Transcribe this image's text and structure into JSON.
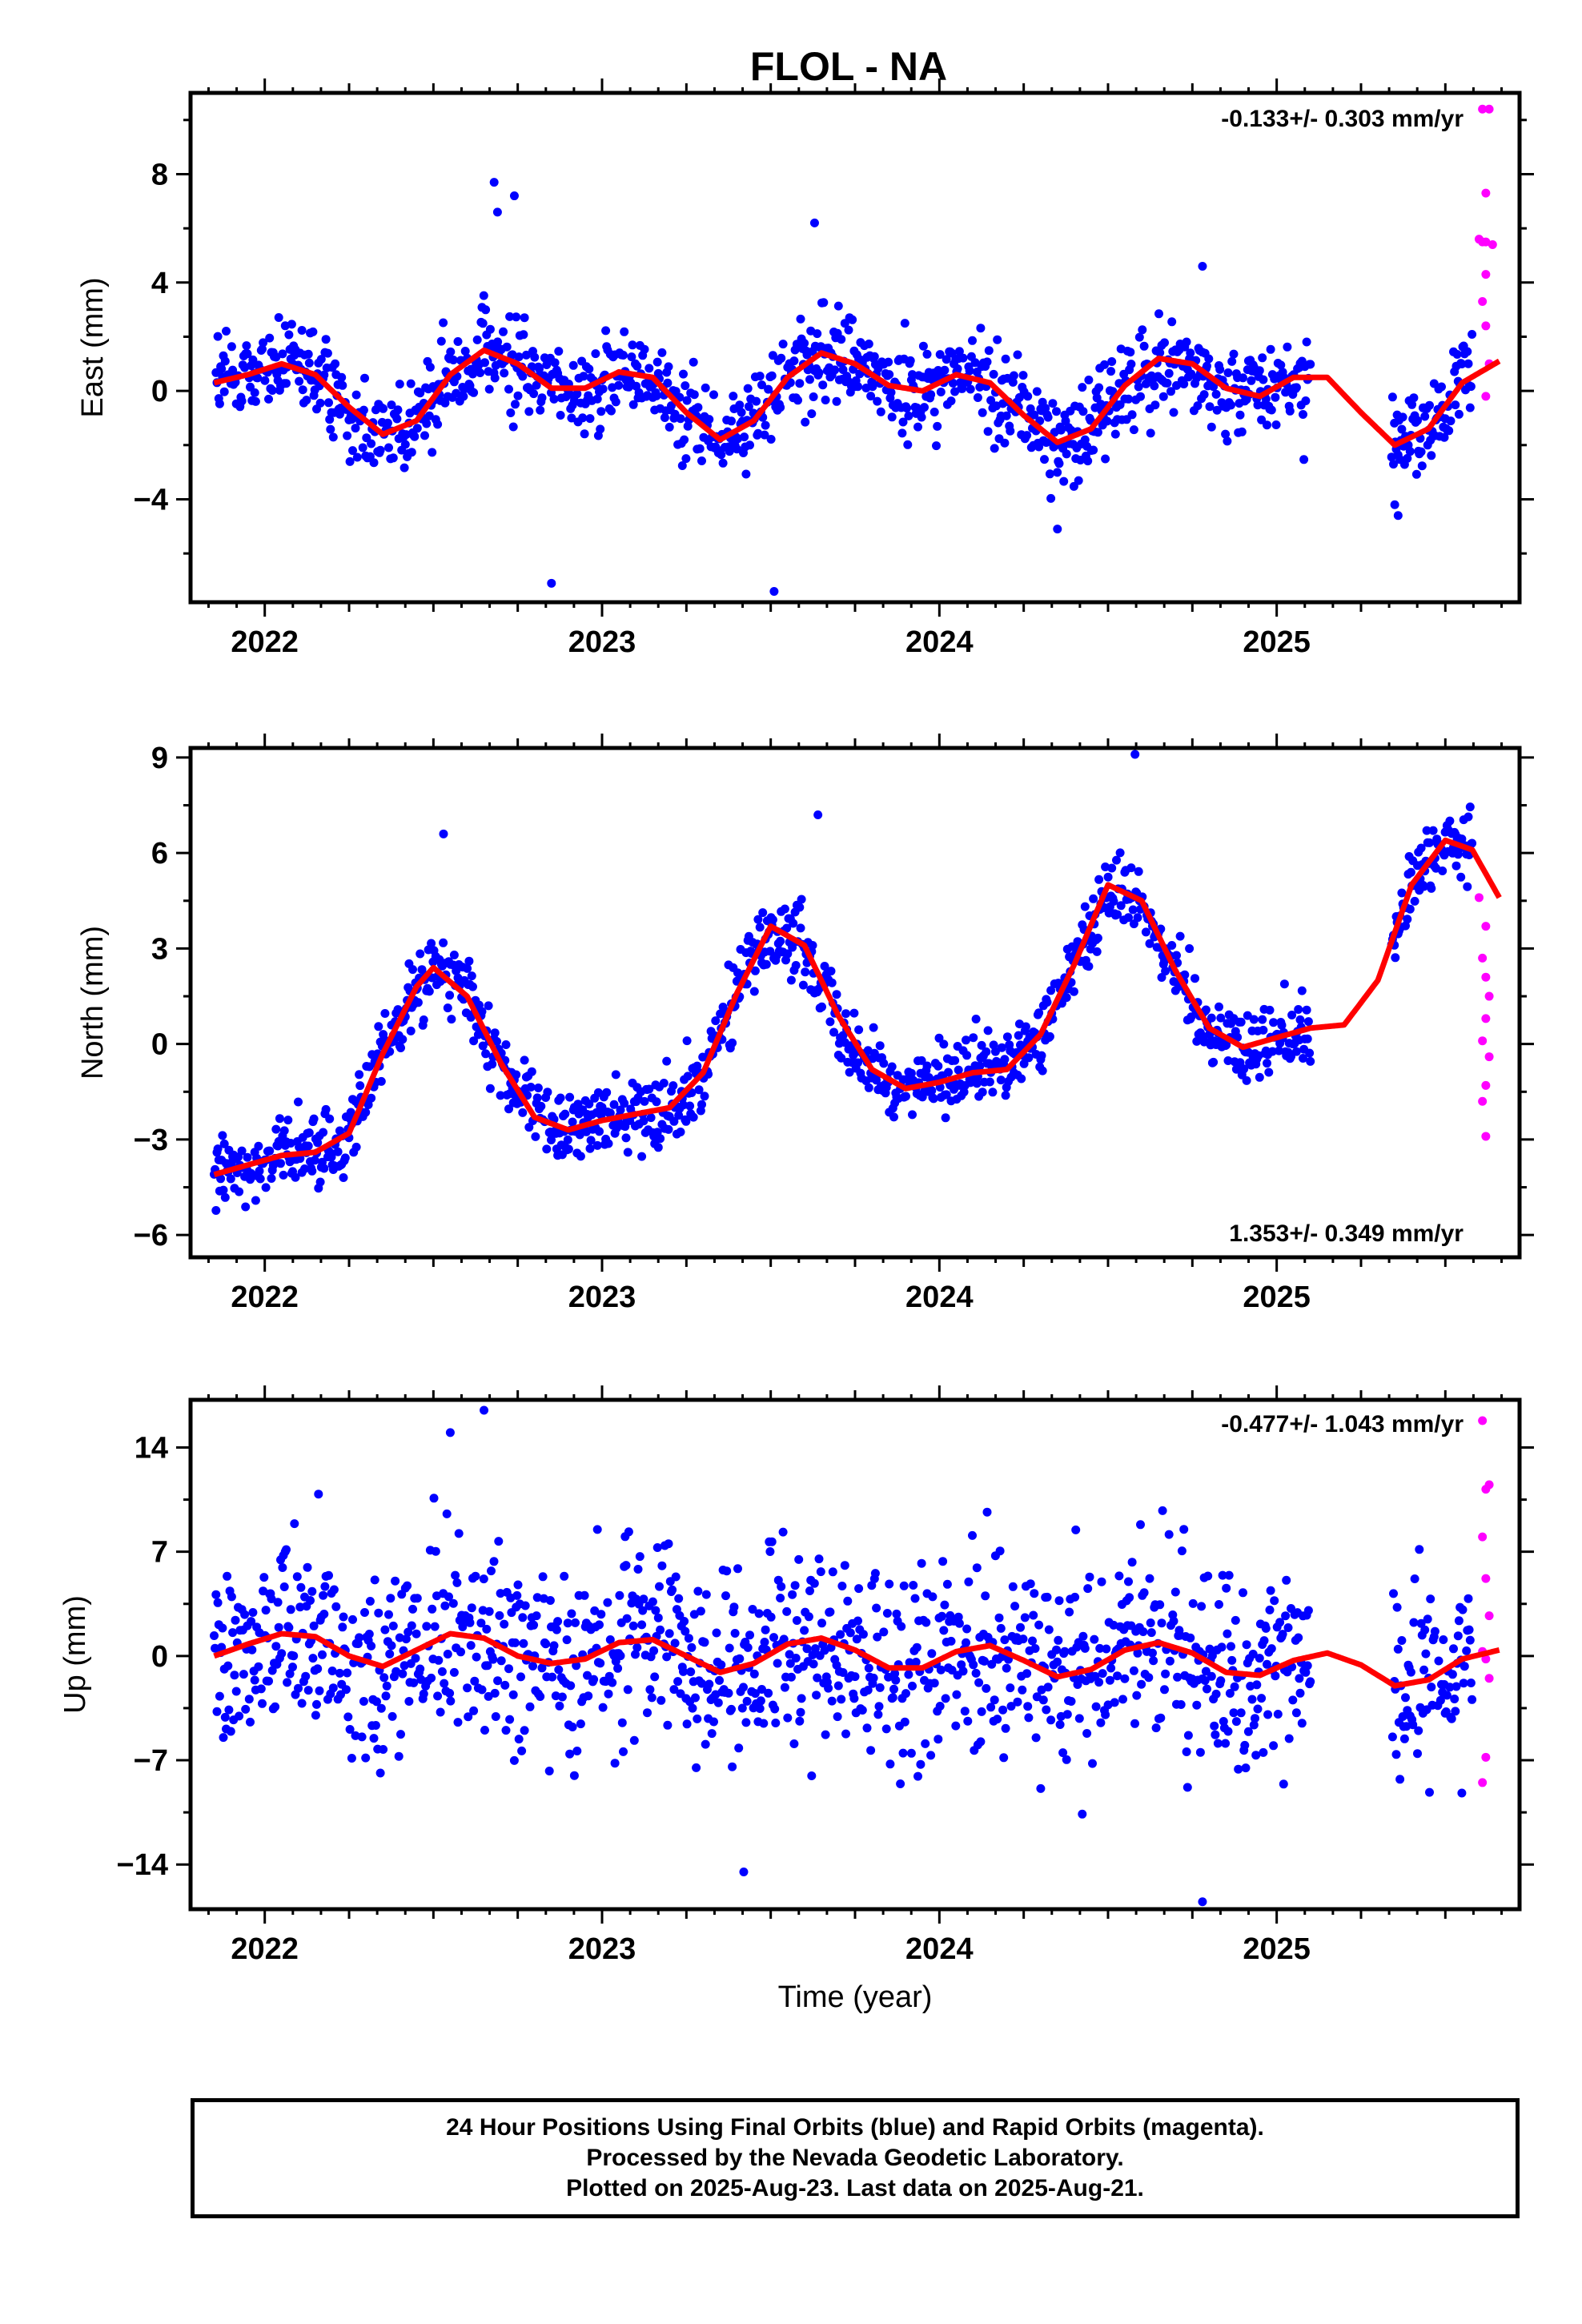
{
  "title": "FLOL - NA",
  "colors": {
    "final": "#0000ff",
    "rapid": "#ff00ff",
    "model": "#ff0000",
    "frame": "#000000"
  },
  "xlabel": "Time (year)",
  "footer": {
    "line1": "24 Hour Positions Using Final Orbits (blue) and Rapid Orbits (magenta).",
    "line2": "Processed by the Nevada Geodetic Laboratory.",
    "line3": "Plotted on 2025-Aug-23. Last data on 2025-Aug-21."
  },
  "chart_data": [
    {
      "type": "scatter",
      "ylabel": "East (mm)",
      "rate_label": "-0.133+/- 0.303 mm/yr",
      "xlim": [
        2021.78,
        2025.72
      ],
      "ylim": [
        -7.8,
        11.0
      ],
      "xticks": [
        2022,
        2023,
        2024,
        2025
      ],
      "xtick_labels": [
        "2022",
        "2023",
        "2024",
        "2025"
      ],
      "yticks": [
        -4,
        0,
        4,
        8
      ],
      "ytick_labels": [
        "−4",
        "0",
        "4",
        "8"
      ],
      "final_range": [
        2021.85,
        2025.58
      ],
      "gap": [
        2025.1,
        2025.34
      ],
      "final_noise_sd": 1.2,
      "model_x": [
        2021.85,
        2021.95,
        2022.05,
        2022.15,
        2022.25,
        2022.35,
        2022.45,
        2022.55,
        2022.65,
        2022.75,
        2022.85,
        2022.95,
        2023.05,
        2023.15,
        2023.25,
        2023.35,
        2023.45,
        2023.55,
        2023.65,
        2023.75,
        2023.85,
        2023.95,
        2024.05,
        2024.15,
        2024.25,
        2024.35,
        2024.45,
        2024.55,
        2024.65,
        2024.75,
        2024.85,
        2024.95,
        2025.05,
        2025.15,
        2025.25,
        2025.35,
        2025.45,
        2025.55,
        2025.66
      ],
      "model_y": [
        0.3,
        0.6,
        1.0,
        0.6,
        -0.6,
        -1.6,
        -1.1,
        0.6,
        1.5,
        1.0,
        0.1,
        0.1,
        0.7,
        0.5,
        -0.8,
        -1.8,
        -1.1,
        0.5,
        1.4,
        1.0,
        0.2,
        0.0,
        0.6,
        0.3,
        -0.9,
        -1.9,
        -1.4,
        0.2,
        1.2,
        1.0,
        0.1,
        -0.2,
        0.5,
        0.5,
        -0.8,
        -2.0,
        -1.4,
        0.3,
        1.1
      ],
      "rapid_points": [
        [
          2025.61,
          10.4
        ],
        [
          2025.63,
          10.4
        ],
        [
          2025.62,
          7.3
        ],
        [
          2025.6,
          5.6
        ],
        [
          2025.61,
          5.5
        ],
        [
          2025.62,
          5.5
        ],
        [
          2025.64,
          5.4
        ],
        [
          2025.62,
          4.3
        ],
        [
          2025.61,
          3.3
        ],
        [
          2025.62,
          2.4
        ],
        [
          2025.63,
          1.0
        ],
        [
          2025.62,
          -0.2
        ]
      ],
      "outliers": [
        [
          2022.68,
          7.7
        ],
        [
          2022.69,
          6.6
        ],
        [
          2022.74,
          7.2
        ],
        [
          2022.85,
          -7.1
        ],
        [
          2023.51,
          -7.4
        ],
        [
          2023.63,
          6.2
        ],
        [
          2024.35,
          -5.1
        ],
        [
          2024.78,
          4.6
        ],
        [
          2025.35,
          -4.2
        ],
        [
          2025.36,
          -4.6
        ]
      ]
    },
    {
      "type": "scatter",
      "ylabel": "North (mm)",
      "rate_label": "1.353+/- 0.349 mm/yr",
      "xlim": [
        2021.78,
        2025.72
      ],
      "ylim": [
        -6.7,
        9.3
      ],
      "xticks": [
        2022,
        2023,
        2024,
        2025
      ],
      "xtick_labels": [
        "2022",
        "2023",
        "2024",
        "2025"
      ],
      "yticks": [
        -6,
        -3,
        0,
        3,
        6,
        9
      ],
      "ytick_labels": [
        "−6",
        "−3",
        "0",
        "3",
        "6",
        "9"
      ],
      "final_range": [
        2021.85,
        2025.58
      ],
      "gap": [
        2025.1,
        2025.34
      ],
      "final_noise_sd": 0.8,
      "model_x": [
        2021.85,
        2021.95,
        2022.05,
        2022.15,
        2022.25,
        2022.35,
        2022.45,
        2022.5,
        2022.6,
        2022.7,
        2022.8,
        2022.9,
        2023.0,
        2023.1,
        2023.2,
        2023.3,
        2023.4,
        2023.5,
        2023.6,
        2023.7,
        2023.8,
        2023.9,
        2024.0,
        2024.1,
        2024.2,
        2024.3,
        2024.4,
        2024.5,
        2024.6,
        2024.7,
        2024.8,
        2024.9,
        2025.0,
        2025.1,
        2025.2,
        2025.3,
        2025.4,
        2025.5,
        2025.58,
        2025.66
      ],
      "model_y": [
        -4.1,
        -3.8,
        -3.5,
        -3.4,
        -2.8,
        -0.3,
        1.8,
        2.4,
        1.5,
        -0.6,
        -2.3,
        -2.7,
        -2.4,
        -2.2,
        -2.0,
        -0.9,
        1.6,
        3.7,
        3.1,
        0.9,
        -0.8,
        -1.4,
        -1.2,
        -0.9,
        -0.8,
        0.3,
        2.5,
        5.0,
        4.5,
        2.3,
        0.5,
        -0.1,
        0.2,
        0.5,
        0.6,
        2.0,
        5.0,
        6.4,
        6.1,
        4.6
      ],
      "rapid_points": [
        [
          2025.6,
          4.6
        ],
        [
          2025.62,
          3.7
        ],
        [
          2025.61,
          2.7
        ],
        [
          2025.62,
          2.1
        ],
        [
          2025.63,
          1.5
        ],
        [
          2025.62,
          0.8
        ],
        [
          2025.61,
          0.1
        ],
        [
          2025.63,
          -0.4
        ],
        [
          2025.62,
          -1.3
        ],
        [
          2025.61,
          -1.8
        ],
        [
          2025.62,
          -2.9
        ]
      ],
      "outliers": [
        [
          2024.58,
          9.1
        ],
        [
          2023.64,
          7.2
        ],
        [
          2022.53,
          6.6
        ]
      ]
    },
    {
      "type": "scatter",
      "ylabel": "Up (mm)",
      "rate_label": "-0.477+/- 1.043 mm/yr",
      "xlim": [
        2021.78,
        2025.72
      ],
      "ylim": [
        -17.0,
        17.2
      ],
      "xticks": [
        2022,
        2023,
        2024,
        2025
      ],
      "xtick_labels": [
        "2022",
        "2023",
        "2024",
        "2025"
      ],
      "yticks": [
        -14,
        -7,
        0,
        7,
        14
      ],
      "ytick_labels": [
        "−14",
        "−7",
        "0",
        "7",
        "14"
      ],
      "final_range": [
        2021.85,
        2025.58
      ],
      "gap": [
        2025.1,
        2025.34
      ],
      "final_noise_sd": 4.6,
      "model_x": [
        2021.85,
        2021.95,
        2022.05,
        2022.15,
        2022.25,
        2022.35,
        2022.45,
        2022.55,
        2022.65,
        2022.75,
        2022.85,
        2022.95,
        2023.05,
        2023.15,
        2023.25,
        2023.35,
        2023.45,
        2023.55,
        2023.65,
        2023.75,
        2023.85,
        2023.95,
        2024.05,
        2024.15,
        2024.25,
        2024.35,
        2024.45,
        2024.55,
        2024.65,
        2024.75,
        2024.85,
        2024.95,
        2025.05,
        2025.15,
        2025.25,
        2025.35,
        2025.45,
        2025.55,
        2025.66
      ],
      "model_y": [
        0.0,
        0.8,
        1.5,
        1.3,
        0.0,
        -0.7,
        0.4,
        1.5,
        1.2,
        0.0,
        -0.5,
        -0.2,
        0.9,
        1.1,
        0.0,
        -1.1,
        -0.5,
        0.8,
        1.2,
        0.4,
        -0.8,
        -0.8,
        0.3,
        0.7,
        -0.3,
        -1.4,
        -0.9,
        0.4,
        0.9,
        0.2,
        -1.1,
        -1.3,
        -0.3,
        0.2,
        -0.6,
        -2.0,
        -1.6,
        -0.2,
        0.4
      ],
      "rapid_points": [
        [
          2025.61,
          15.8
        ],
        [
          2025.63,
          11.5
        ],
        [
          2025.62,
          11.2
        ],
        [
          2025.61,
          8.0
        ],
        [
          2025.62,
          5.2
        ],
        [
          2025.63,
          2.7
        ],
        [
          2025.61,
          0.3
        ],
        [
          2025.62,
          -0.2
        ],
        [
          2025.63,
          -1.5
        ],
        [
          2025.62,
          -6.8
        ],
        [
          2025.61,
          -8.5
        ]
      ],
      "outliers": [
        [
          2022.65,
          16.5
        ],
        [
          2024.78,
          -16.5
        ],
        [
          2023.42,
          -14.5
        ],
        [
          2022.55,
          15.0
        ]
      ]
    }
  ]
}
